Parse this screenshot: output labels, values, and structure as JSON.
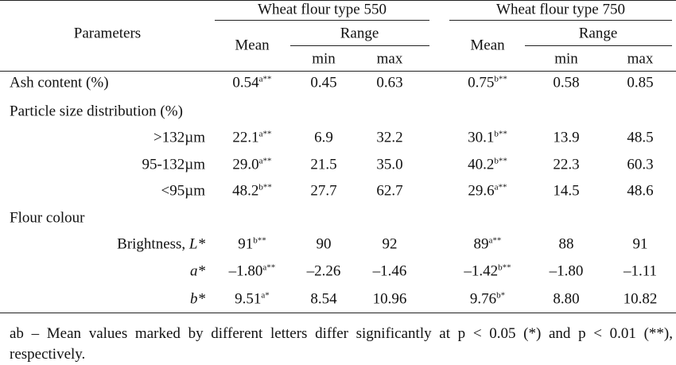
{
  "header": {
    "parameters": "Parameters",
    "groups": [
      {
        "title": "Wheat flour type 550",
        "mean": "Mean",
        "range": "Range",
        "min": "min",
        "max": "max"
      },
      {
        "title": "Wheat flour type 750",
        "mean": "Mean",
        "range": "Range",
        "min": "min",
        "max": "max"
      }
    ]
  },
  "rows": [
    {
      "label": "Ash content (%)",
      "cells": [
        {
          "value": "0.54",
          "sup": "a**"
        },
        {
          "value": "0.45"
        },
        {
          "value": "0.63"
        },
        {
          "value": "0.75",
          "sup": "b**"
        },
        {
          "value": "0.58"
        },
        {
          "value": "0.85"
        }
      ]
    },
    {
      "label": "Particle size distribution (%)"
    },
    {
      "label": ">132µm",
      "cells": [
        {
          "value": "22.1",
          "sup": "a**"
        },
        {
          "value": "6.9"
        },
        {
          "value": "32.2"
        },
        {
          "value": "30.1",
          "sup": "b**"
        },
        {
          "value": "13.9"
        },
        {
          "value": "48.5"
        }
      ]
    },
    {
      "label": "95-132µm",
      "cells": [
        {
          "value": "29.0",
          "sup": "a**"
        },
        {
          "value": "21.5"
        },
        {
          "value": "35.0"
        },
        {
          "value": "40.2",
          "sup": "b**"
        },
        {
          "value": "22.3"
        },
        {
          "value": "60.3"
        }
      ]
    },
    {
      "label": "<95µm",
      "cells": [
        {
          "value": "48.2",
          "sup": "b**"
        },
        {
          "value": "27.7"
        },
        {
          "value": "62.7"
        },
        {
          "value": "29.6",
          "sup": "a**"
        },
        {
          "value": "14.5"
        },
        {
          "value": "48.6"
        }
      ]
    },
    {
      "label": "Flour colour"
    },
    {
      "label": "Brightness,",
      "symbol": "L*",
      "cells": [
        {
          "value": "91",
          "sup": "b**"
        },
        {
          "value": "90"
        },
        {
          "value": "92"
        },
        {
          "value": "89",
          "sup": "a**"
        },
        {
          "value": "88"
        },
        {
          "value": "91"
        }
      ]
    },
    {
      "symbol": "a*",
      "cells": [
        {
          "value": "–1.80",
          "sup": "a**"
        },
        {
          "value": "–2.26"
        },
        {
          "value": "–1.46"
        },
        {
          "value": "–1.42",
          "sup": "b**"
        },
        {
          "value": "–1.80"
        },
        {
          "value": "–1.11"
        }
      ]
    },
    {
      "symbol": "b*",
      "cells": [
        {
          "value": "9.51",
          "sup": "a*"
        },
        {
          "value": "8.54"
        },
        {
          "value": "10.96"
        },
        {
          "value": "9.76",
          "sup": "b*"
        },
        {
          "value": "8.80"
        },
        {
          "value": "10.82"
        }
      ]
    }
  ],
  "footnote": "ab – Mean values marked by different letters differ significantly at p < 0.05 (*) and p < 0.01 (**), respectively."
}
